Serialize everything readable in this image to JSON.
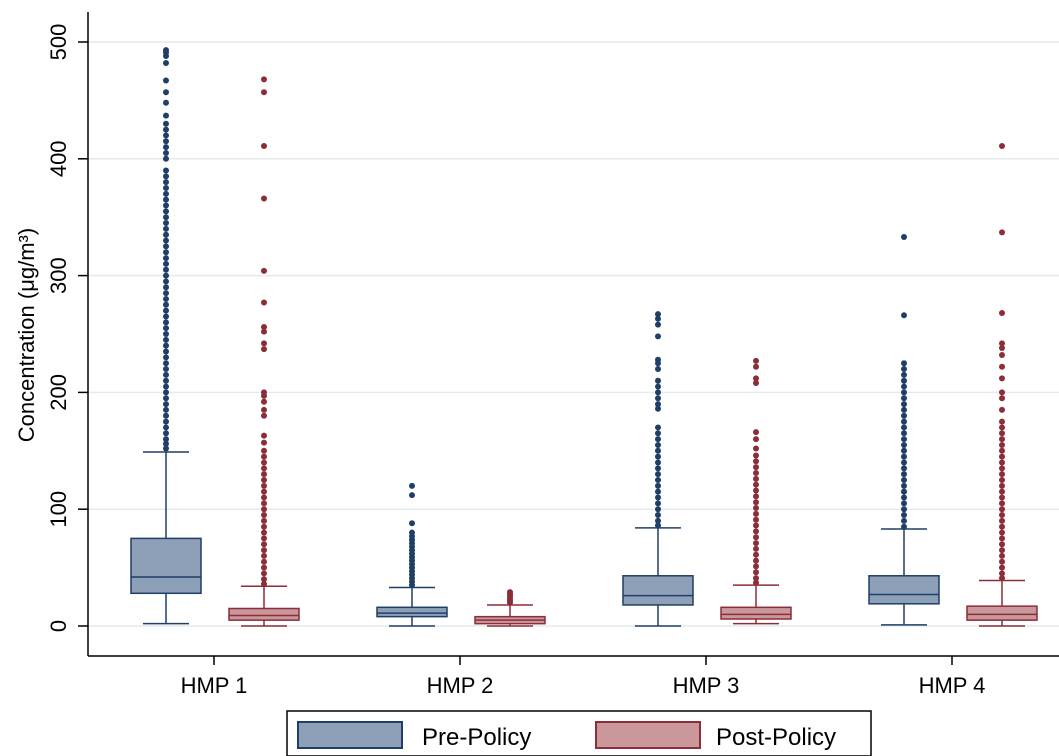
{
  "chart_data": {
    "type": "box",
    "ylabel": "Concentration (μg/m³)",
    "ylim": [
      -25,
      515
    ],
    "yticks": [
      0,
      100,
      200,
      300,
      400,
      500
    ],
    "ytick_labels": [
      "0",
      "100",
      "200",
      "300",
      "400",
      "500"
    ],
    "grid": true,
    "legend_position": "bottom",
    "categories": [
      "HMP 1",
      "HMP 2",
      "HMP 3",
      "HMP 4"
    ],
    "series": [
      {
        "name": "Pre-Policy",
        "fill": "#8da0b8",
        "stroke": "#1f3f66",
        "boxes": [
          {
            "min": 2,
            "q1": 28,
            "median": 42,
            "q3": 75,
            "max": 149,
            "outliers": [
              152,
              156,
              160,
              165,
              170,
              175,
              180,
              185,
              190,
              195,
              200,
              205,
              210,
              215,
              220,
              225,
              230,
              235,
              240,
              245,
              250,
              255,
              260,
              265,
              270,
              275,
              280,
              285,
              290,
              295,
              300,
              305,
              310,
              315,
              320,
              325,
              330,
              335,
              340,
              345,
              350,
              355,
              360,
              365,
              370,
              375,
              380,
              385,
              390,
              400,
              405,
              410,
              415,
              420,
              425,
              430,
              437,
              448,
              457,
              467,
              482,
              488,
              491,
              493
            ]
          },
          {
            "min": 0,
            "q1": 8,
            "median": 11,
            "q3": 16,
            "max": 33,
            "outliers": [
              35,
              38,
              41,
              44,
              47,
              50,
              53,
              56,
              59,
              62,
              65,
              68,
              71,
              74,
              77,
              80,
              88,
              112,
              120
            ]
          },
          {
            "min": 0,
            "q1": 18,
            "median": 26,
            "q3": 43,
            "max": 84,
            "outliers": [
              86,
              90,
              95,
              100,
              105,
              110,
              115,
              120,
              125,
              130,
              135,
              140,
              145,
              150,
              155,
              160,
              165,
              170,
              186,
              190,
              195,
              200,
              205,
              210,
              220,
              225,
              228,
              248,
              258,
              263,
              267
            ]
          },
          {
            "min": 1,
            "q1": 19,
            "median": 27,
            "q3": 43,
            "max": 83,
            "outliers": [
              85,
              90,
              95,
              100,
              105,
              110,
              115,
              120,
              125,
              130,
              135,
              140,
              145,
              150,
              155,
              160,
              165,
              170,
              175,
              180,
              185,
              190,
              195,
              200,
              205,
              210,
              215,
              220,
              225,
              266,
              333
            ]
          }
        ]
      },
      {
        "name": "Post-Policy",
        "fill": "#c9979c",
        "stroke": "#8b2e38",
        "boxes": [
          {
            "min": 0,
            "q1": 5,
            "median": 9,
            "q3": 15,
            "max": 34,
            "outliers": [
              36,
              40,
              45,
              50,
              55,
              60,
              65,
              70,
              75,
              80,
              85,
              90,
              95,
              100,
              105,
              110,
              115,
              120,
              125,
              130,
              135,
              140,
              145,
              150,
              157,
              163,
              180,
              185,
              192,
              197,
              200,
              237,
              242,
              252,
              256,
              277,
              304,
              366,
              411,
              457,
              468
            ]
          },
          {
            "min": 0,
            "q1": 2,
            "median": 5,
            "q3": 8,
            "max": 18,
            "outliers": [
              20,
              22,
              24,
              26,
              28,
              29
            ]
          },
          {
            "min": 2,
            "q1": 6,
            "median": 10,
            "q3": 16,
            "max": 35,
            "outliers": [
              37,
              41,
              46,
              51,
              56,
              61,
              66,
              71,
              76,
              81,
              86,
              91,
              96,
              101,
              106,
              111,
              116,
              121,
              126,
              131,
              136,
              141,
              146,
              152,
              160,
              166,
              208,
              212,
              222,
              227
            ]
          },
          {
            "min": 0,
            "q1": 5,
            "median": 10,
            "q3": 17,
            "max": 39,
            "outliers": [
              41,
              45,
              50,
              55,
              60,
              65,
              70,
              75,
              80,
              85,
              90,
              95,
              100,
              105,
              110,
              115,
              120,
              125,
              130,
              135,
              140,
              145,
              150,
              155,
              160,
              165,
              170,
              175,
              185,
              195,
              200,
              212,
              222,
              232,
              238,
              242,
              268,
              337,
              411
            ]
          }
        ]
      }
    ]
  }
}
